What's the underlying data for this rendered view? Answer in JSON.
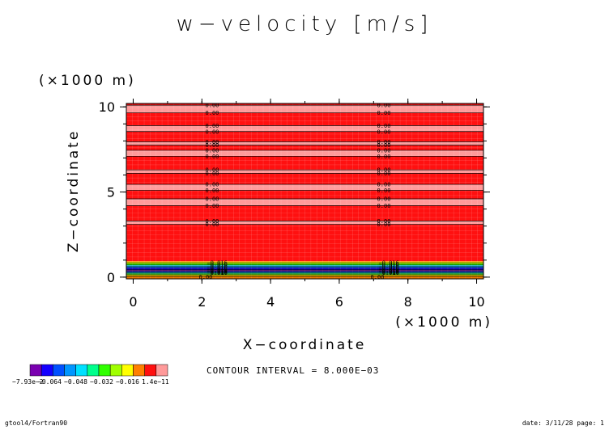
{
  "chart_data": {
    "type": "heatmap",
    "title": "w−velocity [m/s]",
    "xlabel": "X−coordinate",
    "ylabel": "Z−coordinate",
    "x_unit": "(×1000 m)",
    "y_unit": "(×1000 m)",
    "xlim": [
      -0.2,
      10.2
    ],
    "ylim": [
      -0.1,
      10.2
    ],
    "xticks": [
      0,
      2,
      4,
      6,
      8,
      10
    ],
    "yticks": [
      0,
      5,
      10
    ],
    "contour_interval": "CONTOUR INTERVAL = 8.000E−03",
    "levels": [
      {
        "value": -0.0793,
        "color": "#7a00b0"
      },
      {
        "value": -0.072,
        "color": "#1400ff"
      },
      {
        "value": -0.064,
        "color": "#0050ff"
      },
      {
        "value": -0.056,
        "color": "#0096ff"
      },
      {
        "value": -0.048,
        "color": "#00e0ff"
      },
      {
        "value": -0.04,
        "color": "#00ff8c"
      },
      {
        "value": -0.032,
        "color": "#30ff00"
      },
      {
        "value": -0.024,
        "color": "#a0ff00"
      },
      {
        "value": -0.016,
        "color": "#ffff00"
      },
      {
        "value": -0.008,
        "color": "#ff8000"
      },
      {
        "value": 0.0,
        "color": "#ff1010"
      },
      {
        "value": 1.4e-11,
        "color": "#ff9a9a"
      }
    ],
    "colorbar_labels": [
      "−7.93e−2",
      "−0.064",
      "−0.048",
      "−0.032",
      "−0.016",
      "1.4e−11"
    ],
    "upper_bands": [
      {
        "z0": 9.65,
        "z1": 10.1
      },
      {
        "z0": 8.55,
        "z1": 8.9
      },
      {
        "z0": 7.75,
        "z1": 7.95
      },
      {
        "z0": 7.1,
        "z1": 7.45
      },
      {
        "z0": 6.1,
        "z1": 6.3
      },
      {
        "z0": 5.1,
        "z1": 5.45
      },
      {
        "z0": 4.2,
        "z1": 4.6
      },
      {
        "z0": 3.1,
        "z1": 3.3
      }
    ],
    "lower_layers": [
      {
        "z": 0.85,
        "value": -0.016
      },
      {
        "z": 0.75,
        "value": -0.032
      },
      {
        "z": 0.65,
        "value": -0.048
      },
      {
        "z": 0.55,
        "value": -0.064
      },
      {
        "z": 0.45,
        "value": -0.072
      },
      {
        "z": 0.38,
        "value": -0.0793
      },
      {
        "z": 0.32,
        "value": -0.064
      },
      {
        "z": 0.25,
        "value": -0.048
      },
      {
        "z": 0.18,
        "value": -0.032
      },
      {
        "z": 0.1,
        "value": -0.016
      },
      {
        "z": 0.02,
        "value": -0.008
      }
    ],
    "contour_label_x": [
      2.1,
      7.1
    ],
    "contour_label_text": "0.00",
    "lower_label_text": "−0.016",
    "grid": true
  },
  "footer": {
    "left": "gtool4/Fortran90",
    "right": "date: 3/11/28 page: 1"
  }
}
